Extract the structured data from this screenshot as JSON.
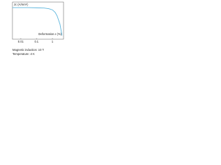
{
  "chart_data": {
    "type": "line",
    "y_label": "Jc (A/mm²)",
    "x_label": "Deformation ε (%)",
    "annotations": [
      "Magnetic induction: 10 T",
      "Temperature: 4 K"
    ],
    "x": [
      0.003,
      0.01,
      0.03,
      0.1,
      0.3,
      0.6,
      1,
      1.5,
      2,
      3,
      4
    ],
    "series": [
      {
        "color": "#5ab4dc",
        "values": [
          85,
          85,
          85,
          84.5,
          84,
          82,
          79,
          72,
          62,
          40,
          10
        ]
      }
    ],
    "xlim": [
      0.003,
      5
    ],
    "ylim": [
      0,
      100
    ],
    "xticks": [
      0.01,
      0.1,
      1
    ],
    "log_x": true
  }
}
